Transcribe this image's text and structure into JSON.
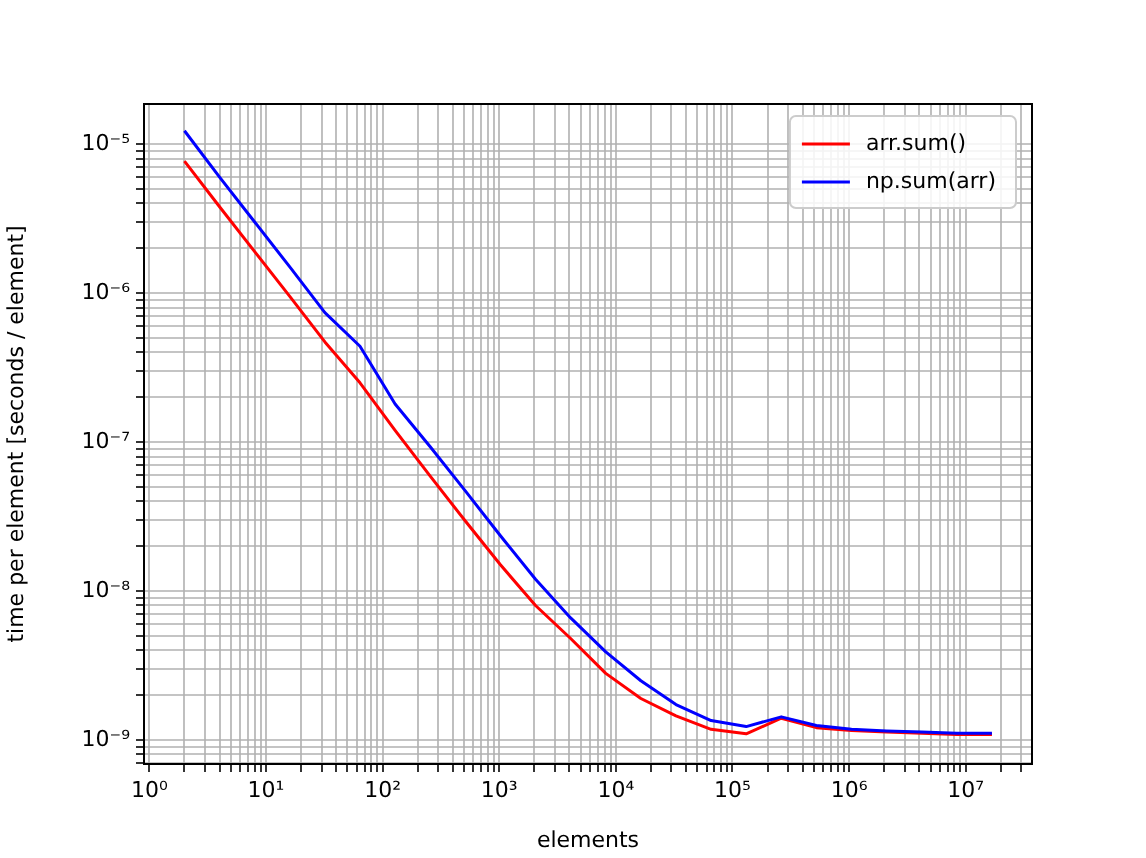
{
  "chart_data": {
    "type": "line",
    "xlabel": "elements",
    "ylabel": "time per element [seconds / element]",
    "x": [
      2,
      4,
      8,
      16,
      32,
      64,
      128,
      256,
      512,
      1024,
      2048,
      4096,
      8192,
      16384,
      32768,
      65536,
      131072,
      262144,
      524288,
      1048576,
      2097152,
      4194304,
      8388608,
      16777216
    ],
    "series": [
      {
        "name": "arr.sum()",
        "color": "#ff0000",
        "values": [
          7.7e-06,
          3.8e-06,
          1.9e-06,
          9.5e-07,
          4.7e-07,
          2.5e-07,
          1.2e-07,
          5.9e-08,
          2.95e-08,
          1.5e-08,
          8e-09,
          4.8e-09,
          2.8e-09,
          1.9e-09,
          1.45e-09,
          1.18e-09,
          1.1e-09,
          1.4e-09,
          1.21e-09,
          1.16e-09,
          1.13e-09,
          1.11e-09,
          1.09e-09,
          1.09e-09
        ]
      },
      {
        "name": "np.sum(arr)",
        "color": "#0000ff",
        "values": [
          1.23e-05,
          6e-06,
          3e-06,
          1.5e-06,
          7.4e-07,
          4.4e-07,
          1.8e-07,
          9.3e-08,
          4.7e-08,
          2.35e-08,
          1.2e-08,
          6.6e-09,
          3.9e-09,
          2.5e-09,
          1.73e-09,
          1.35e-09,
          1.23e-09,
          1.43e-09,
          1.25e-09,
          1.18e-09,
          1.15e-09,
          1.13e-09,
          1.11e-09,
          1.11e-09
        ]
      }
    ],
    "log": "xy",
    "xlim": [
      0.9,
      37000000.0
    ],
    "ylim": [
      6.9e-10,
      1.86e-05
    ],
    "xticks": [
      {
        "value": 1,
        "label": "10⁰"
      },
      {
        "value": 2,
        "label": null
      },
      {
        "value": 3,
        "label": null
      },
      {
        "value": 4,
        "label": null
      },
      {
        "value": 5,
        "label": null
      },
      {
        "value": 6,
        "label": null
      },
      {
        "value": 7,
        "label": null
      },
      {
        "value": 8,
        "label": null
      },
      {
        "value": 9,
        "label": null
      },
      {
        "value": 10,
        "label": "10¹"
      },
      {
        "value": 20,
        "label": null
      },
      {
        "value": 30,
        "label": null
      },
      {
        "value": 40,
        "label": null
      },
      {
        "value": 50,
        "label": null
      },
      {
        "value": 60,
        "label": null
      },
      {
        "value": 70,
        "label": null
      },
      {
        "value": 80,
        "label": null
      },
      {
        "value": 90,
        "label": null
      },
      {
        "value": 100,
        "label": "10²"
      },
      {
        "value": 200,
        "label": null
      },
      {
        "value": 300,
        "label": null
      },
      {
        "value": 400,
        "label": null
      },
      {
        "value": 500,
        "label": null
      },
      {
        "value": 600,
        "label": null
      },
      {
        "value": 700,
        "label": null
      },
      {
        "value": 800,
        "label": null
      },
      {
        "value": 900,
        "label": null
      },
      {
        "value": 1000,
        "label": "10³"
      },
      {
        "value": 2000,
        "label": null
      },
      {
        "value": 3000,
        "label": null
      },
      {
        "value": 4000,
        "label": null
      },
      {
        "value": 5000,
        "label": null
      },
      {
        "value": 6000,
        "label": null
      },
      {
        "value": 7000,
        "label": null
      },
      {
        "value": 8000,
        "label": null
      },
      {
        "value": 9000,
        "label": null
      },
      {
        "value": 10000,
        "label": "10⁴"
      },
      {
        "value": 20000,
        "label": null
      },
      {
        "value": 30000,
        "label": null
      },
      {
        "value": 40000,
        "label": null
      },
      {
        "value": 50000,
        "label": null
      },
      {
        "value": 60000,
        "label": null
      },
      {
        "value": 70000,
        "label": null
      },
      {
        "value": 80000,
        "label": null
      },
      {
        "value": 90000,
        "label": null
      },
      {
        "value": 100000,
        "label": "10⁵"
      },
      {
        "value": 200000,
        "label": null
      },
      {
        "value": 300000,
        "label": null
      },
      {
        "value": 400000,
        "label": null
      },
      {
        "value": 500000,
        "label": null
      },
      {
        "value": 600000,
        "label": null
      },
      {
        "value": 700000,
        "label": null
      },
      {
        "value": 800000,
        "label": null
      },
      {
        "value": 900000,
        "label": null
      },
      {
        "value": 1000000,
        "label": "10⁶"
      },
      {
        "value": 2000000,
        "label": null
      },
      {
        "value": 3000000,
        "label": null
      },
      {
        "value": 4000000,
        "label": null
      },
      {
        "value": 5000000,
        "label": null
      },
      {
        "value": 6000000,
        "label": null
      },
      {
        "value": 7000000,
        "label": null
      },
      {
        "value": 8000000,
        "label": null
      },
      {
        "value": 9000000,
        "label": null
      },
      {
        "value": 10000000,
        "label": "10⁷"
      },
      {
        "value": 20000000,
        "label": null
      },
      {
        "value": 30000000,
        "label": null
      }
    ],
    "yticks": [
      {
        "value": 7e-10,
        "label": null
      },
      {
        "value": 8e-10,
        "label": null
      },
      {
        "value": 9e-10,
        "label": null
      },
      {
        "value": 1e-09,
        "label": "10⁻⁹"
      },
      {
        "value": 2e-09,
        "label": null
      },
      {
        "value": 3e-09,
        "label": null
      },
      {
        "value": 4e-09,
        "label": null
      },
      {
        "value": 5e-09,
        "label": null
      },
      {
        "value": 6e-09,
        "label": null
      },
      {
        "value": 7e-09,
        "label": null
      },
      {
        "value": 8e-09,
        "label": null
      },
      {
        "value": 9e-09,
        "label": null
      },
      {
        "value": 1e-08,
        "label": "10⁻⁸"
      },
      {
        "value": 2e-08,
        "label": null
      },
      {
        "value": 3e-08,
        "label": null
      },
      {
        "value": 4e-08,
        "label": null
      },
      {
        "value": 5e-08,
        "label": null
      },
      {
        "value": 6e-08,
        "label": null
      },
      {
        "value": 7e-08,
        "label": null
      },
      {
        "value": 8e-08,
        "label": null
      },
      {
        "value": 9e-08,
        "label": null
      },
      {
        "value": 1e-07,
        "label": "10⁻⁷"
      },
      {
        "value": 2e-07,
        "label": null
      },
      {
        "value": 3e-07,
        "label": null
      },
      {
        "value": 4e-07,
        "label": null
      },
      {
        "value": 5e-07,
        "label": null
      },
      {
        "value": 6e-07,
        "label": null
      },
      {
        "value": 7e-07,
        "label": null
      },
      {
        "value": 8e-07,
        "label": null
      },
      {
        "value": 9e-07,
        "label": null
      },
      {
        "value": 1e-06,
        "label": "10⁻⁶"
      },
      {
        "value": 2e-06,
        "label": null
      },
      {
        "value": 3e-06,
        "label": null
      },
      {
        "value": 4e-06,
        "label": null
      },
      {
        "value": 5e-06,
        "label": null
      },
      {
        "value": 6e-06,
        "label": null
      },
      {
        "value": 7e-06,
        "label": null
      },
      {
        "value": 8e-06,
        "label": null
      },
      {
        "value": 9e-06,
        "label": null
      },
      {
        "value": 1e-05,
        "label": "10⁻⁵"
      }
    ],
    "grid": true,
    "legend": "top right",
    "marker": "none",
    "line_style": "solid"
  }
}
